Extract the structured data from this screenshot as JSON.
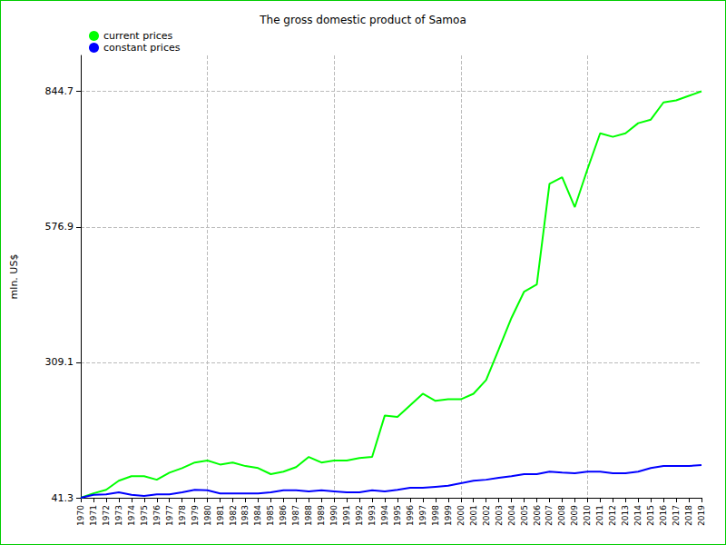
{
  "chart_data": {
    "type": "line",
    "title": "The gross domestic product of Samoa",
    "y_label": "mln. US$",
    "categories": [
      "1970",
      "1971",
      "1972",
      "1973",
      "1974",
      "1975",
      "1976",
      "1977",
      "1978",
      "1979",
      "1980",
      "1981",
      "1982",
      "1983",
      "1984",
      "1985",
      "1986",
      "1987",
      "1988",
      "1989",
      "1990",
      "1991",
      "1992",
      "1993",
      "1994",
      "1995",
      "1996",
      "1997",
      "1998",
      "1999",
      "2000",
      "2001",
      "2002",
      "2003",
      "2004",
      "2005",
      "2006",
      "2007",
      "2008",
      "2009",
      "2010",
      "2011",
      "2012",
      "2013",
      "2014",
      "2015",
      "2016",
      "2017",
      "2018",
      "2019"
    ],
    "series": [
      {
        "name": "current prices",
        "color": "#00ff00",
        "values": [
          41.3,
          50,
          57,
          75,
          84,
          84,
          77,
          91,
          100,
          111,
          115,
          107,
          111,
          104,
          100,
          88,
          93,
          102,
          122,
          111,
          115,
          115,
          120,
          122,
          204,
          201,
          224,
          247,
          233,
          236,
          236,
          247,
          274,
          335,
          397,
          449,
          463,
          662,
          675,
          616,
          691,
          762,
          755,
          762,
          782,
          789,
          823,
          827,
          836,
          845
        ]
      },
      {
        "name": "constant prices",
        "color": "#0000ff",
        "values": [
          41.3,
          47,
          48,
          52,
          47,
          45,
          48,
          48,
          52,
          57,
          56,
          50,
          50,
          50,
          50,
          52,
          56,
          56,
          54,
          56,
          54,
          52,
          52,
          56,
          54,
          57,
          61,
          61,
          63,
          65,
          70,
          75,
          77,
          81,
          84,
          88,
          88,
          93,
          91,
          90,
          93,
          93,
          90,
          90,
          93,
          100,
          104,
          104,
          104,
          106
        ]
      }
    ],
    "ylim": [
      41.3,
      916
    ],
    "yticks": [
      41.3,
      309.1,
      576.9,
      844.7
    ],
    "grid": true,
    "legend": "upper left"
  }
}
